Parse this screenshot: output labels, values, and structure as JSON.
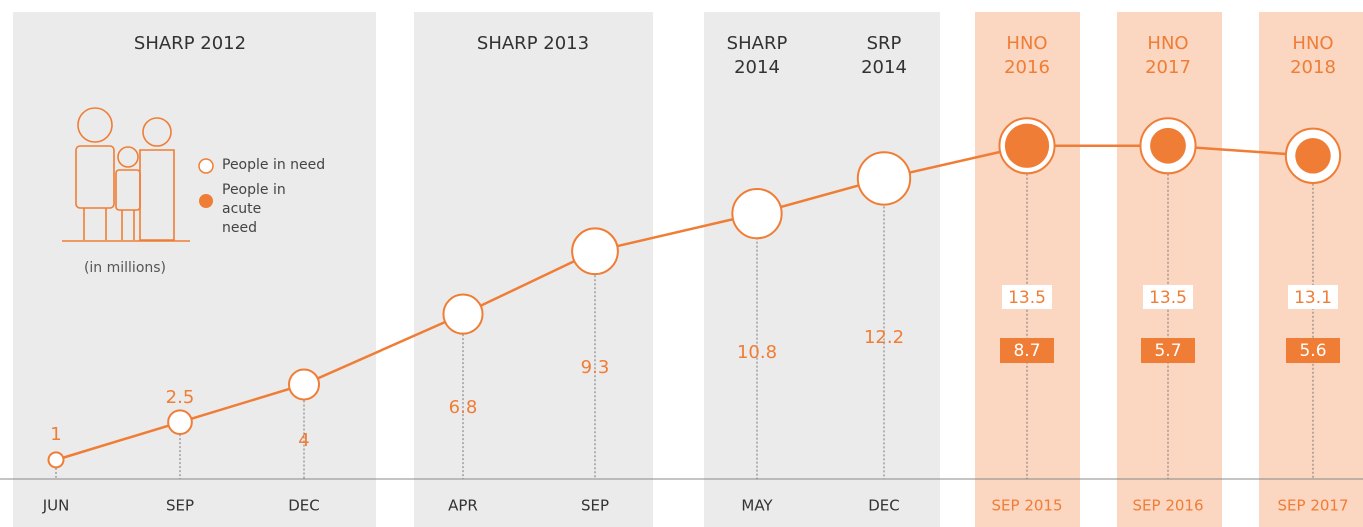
{
  "chart_data": {
    "type": "line",
    "periods": [
      "SHARP 2012",
      "SHARP 2013",
      "SHARP 2014",
      "SRP 2014",
      "HNO 2016",
      "HNO 2017",
      "HNO 2018"
    ],
    "categories": [
      "JUN",
      "SEP",
      "DEC",
      "APR",
      "SEP",
      "MAY",
      "DEC",
      "SEP 2015",
      "SEP 2016",
      "SEP 2017"
    ],
    "series": [
      {
        "name": "People in need",
        "color": "#ffffff",
        "values": [
          1,
          2.5,
          4,
          6.8,
          9.3,
          10.8,
          12.2,
          13.5,
          13.5,
          13.1
        ]
      },
      {
        "name": "People in acute need",
        "color": "#f07d35",
        "values": [
          null,
          null,
          null,
          null,
          null,
          null,
          null,
          8.7,
          5.7,
          5.6
        ]
      }
    ],
    "note": "(in millions)",
    "ylim": [
      0,
      19.3
    ]
  }
}
